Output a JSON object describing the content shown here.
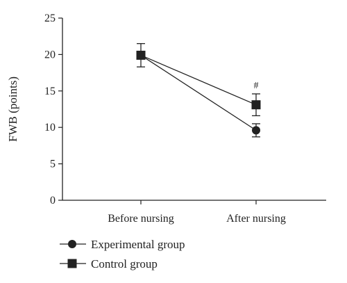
{
  "chart_data": {
    "type": "line",
    "categories": [
      "Before nursing",
      "After nursing"
    ],
    "ylabel": "FWB (points)",
    "xlabel": "",
    "ylim": [
      0,
      25
    ],
    "yticks": [
      0,
      5,
      10,
      15,
      20,
      25
    ],
    "grid": false,
    "legend_position": "bottom-left",
    "series": [
      {
        "name": "Experimental group",
        "marker": "circle",
        "values": [
          19.9,
          9.6
        ],
        "errors": [
          1.6,
          0.9
        ]
      },
      {
        "name": "Control group",
        "marker": "square",
        "values": [
          19.9,
          13.1
        ],
        "errors": [
          1.6,
          1.5
        ]
      }
    ],
    "annotations": [
      {
        "text": "#",
        "category": "After nursing"
      }
    ]
  },
  "colors": {
    "ink": "#222222"
  }
}
